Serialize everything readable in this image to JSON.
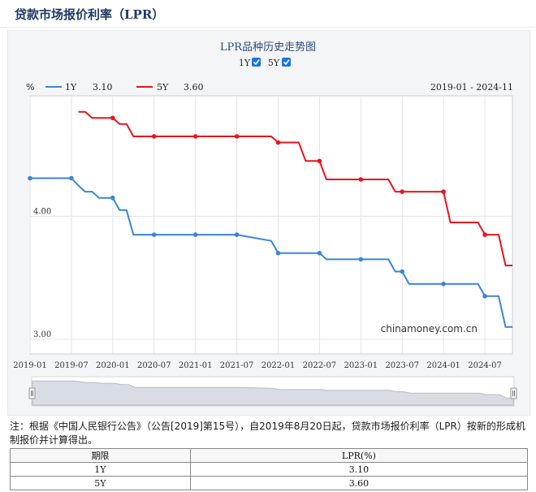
{
  "page": {
    "title": "贷款市场报价利率（LPR）"
  },
  "chart": {
    "title": "LPR品种历史走势图",
    "toggles": [
      {
        "label": "1Y",
        "checked": true
      },
      {
        "label": "5Y",
        "checked": true
      }
    ],
    "unit_label": "%",
    "date_range": "2019-01 - 2024-11",
    "watermark": "chinamoney.com.cn",
    "colors": {
      "1Y": "#3a86d4",
      "5Y": "#e8151c"
    },
    "legend": [
      {
        "name": "1Y",
        "value": "3.10"
      },
      {
        "name": "5Y",
        "value": "3.60"
      }
    ]
  },
  "chart_data": {
    "type": "line",
    "title": "LPR品种历史走势图",
    "xlabel": "",
    "ylabel": "%",
    "ylim": [
      3.0,
      4.9
    ],
    "x_tick_labels": [
      "2019-01",
      "2019-07",
      "2020-01",
      "2020-07",
      "2021-01",
      "2021-07",
      "2022-01",
      "2022-07",
      "2023-01",
      "2023-07",
      "2024-01",
      "2024-07"
    ],
    "y_tick_labels": [
      "3.00",
      "4.00"
    ],
    "legend_position": "top-left",
    "grid": true,
    "series": [
      {
        "name": "1Y",
        "color": "#3a86d4",
        "points": [
          [
            "2019-01",
            4.31
          ],
          [
            "2019-07",
            4.31
          ],
          [
            "2019-08",
            4.25
          ],
          [
            "2019-09",
            4.2
          ],
          [
            "2019-10",
            4.2
          ],
          [
            "2019-11",
            4.15
          ],
          [
            "2019-12",
            4.15
          ],
          [
            "2020-01",
            4.15
          ],
          [
            "2020-02",
            4.05
          ],
          [
            "2020-03",
            4.05
          ],
          [
            "2020-04",
            3.85
          ],
          [
            "2020-05",
            3.85
          ],
          [
            "2020-06",
            3.85
          ],
          [
            "2020-07",
            3.85
          ],
          [
            "2021-01",
            3.85
          ],
          [
            "2021-07",
            3.85
          ],
          [
            "2021-12",
            3.8
          ],
          [
            "2022-01",
            3.7
          ],
          [
            "2022-02",
            3.7
          ],
          [
            "2022-03",
            3.7
          ],
          [
            "2022-04",
            3.7
          ],
          [
            "2022-05",
            3.7
          ],
          [
            "2022-06",
            3.7
          ],
          [
            "2022-07",
            3.7
          ],
          [
            "2022-08",
            3.65
          ],
          [
            "2023-01",
            3.65
          ],
          [
            "2023-05",
            3.65
          ],
          [
            "2023-06",
            3.55
          ],
          [
            "2023-07",
            3.55
          ],
          [
            "2023-08",
            3.45
          ],
          [
            "2024-01",
            3.45
          ],
          [
            "2024-06",
            3.45
          ],
          [
            "2024-07",
            3.35
          ],
          [
            "2024-08",
            3.35
          ],
          [
            "2024-09",
            3.35
          ],
          [
            "2024-10",
            3.1
          ],
          [
            "2024-11",
            3.1
          ]
        ]
      },
      {
        "name": "5Y",
        "color": "#e8151c",
        "points": [
          [
            "2019-08",
            4.85
          ],
          [
            "2019-09",
            4.85
          ],
          [
            "2019-10",
            4.8
          ],
          [
            "2019-11",
            4.8
          ],
          [
            "2019-12",
            4.8
          ],
          [
            "2020-01",
            4.8
          ],
          [
            "2020-02",
            4.75
          ],
          [
            "2020-03",
            4.75
          ],
          [
            "2020-04",
            4.65
          ],
          [
            "2020-05",
            4.65
          ],
          [
            "2020-06",
            4.65
          ],
          [
            "2020-07",
            4.65
          ],
          [
            "2021-01",
            4.65
          ],
          [
            "2021-07",
            4.65
          ],
          [
            "2021-12",
            4.65
          ],
          [
            "2022-01",
            4.6
          ],
          [
            "2022-02",
            4.6
          ],
          [
            "2022-03",
            4.6
          ],
          [
            "2022-04",
            4.6
          ],
          [
            "2022-05",
            4.45
          ],
          [
            "2022-06",
            4.45
          ],
          [
            "2022-07",
            4.45
          ],
          [
            "2022-08",
            4.3
          ],
          [
            "2023-01",
            4.3
          ],
          [
            "2023-05",
            4.3
          ],
          [
            "2023-06",
            4.2
          ],
          [
            "2023-07",
            4.2
          ],
          [
            "2024-01",
            4.2
          ],
          [
            "2024-02",
            3.95
          ],
          [
            "2024-03",
            3.95
          ],
          [
            "2024-06",
            3.95
          ],
          [
            "2024-07",
            3.85
          ],
          [
            "2024-08",
            3.85
          ],
          [
            "2024-09",
            3.85
          ],
          [
            "2024-10",
            3.6
          ],
          [
            "2024-11",
            3.6
          ]
        ]
      }
    ],
    "markers": {
      "1Y": [
        "2019-01",
        "2019-07",
        "2020-01",
        "2020-07",
        "2021-01",
        "2021-07",
        "2022-01",
        "2022-07",
        "2023-01",
        "2023-07",
        "2024-01",
        "2024-07"
      ],
      "5Y": [
        "2020-01",
        "2020-07",
        "2021-01",
        "2021-07",
        "2022-01",
        "2022-07",
        "2023-01",
        "2023-07",
        "2024-01",
        "2024-07"
      ]
    }
  },
  "note": "注：根据《中国人民银行公告》（公告[2019]第15号），自2019年8月20日起，贷款市场报价利率（LPR）按新的形成机制报价并计算得出。",
  "table": {
    "headers": [
      "期限",
      "LPR(%)"
    ],
    "rows": [
      [
        "1Y",
        "3.10"
      ],
      [
        "5Y",
        "3.60"
      ]
    ]
  }
}
